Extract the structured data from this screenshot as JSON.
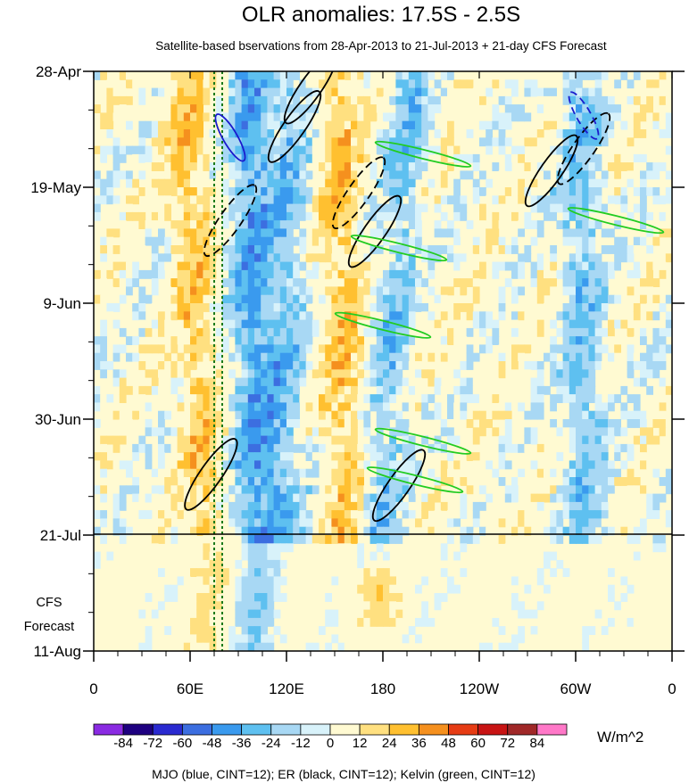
{
  "chart_data": {
    "type": "heatmap",
    "title": "OLR anomalies: 17.5S - 2.5S",
    "subtitle": "Satellite-based bservations from 28-Apr-2013 to 21-Jul-2013 + 21-day CFS Forecast",
    "x_ticks": [
      "0",
      "60E",
      "120E",
      "180",
      "120W",
      "60W",
      "0"
    ],
    "x_tick_values": [
      0,
      60,
      120,
      180,
      240,
      300,
      360
    ],
    "y_ticks": [
      "28-Apr",
      "19-May",
      "9-Jun",
      "30-Jun",
      "21-Jul",
      "11-Aug"
    ],
    "y_tick_days": [
      0,
      21,
      42,
      63,
      84,
      105
    ],
    "xlim": [
      0,
      360
    ],
    "ylim_days": [
      0,
      105
    ],
    "observation_end_label": "21-Jul",
    "forecast_label": [
      "CFS",
      "Forecast"
    ],
    "colorbar": {
      "levels": [
        "-84",
        "-72",
        "-60",
        "-48",
        "-36",
        "-24",
        "-12",
        "0",
        "12",
        "24",
        "36",
        "48",
        "60",
        "72",
        "84"
      ],
      "colors": [
        "#8a2be2",
        "#1e0080",
        "#2a2ad0",
        "#3c6ee0",
        "#3a9aee",
        "#5ec0f0",
        "#a8d8f4",
        "#d8f2fa",
        "#fffad2",
        "#ffe080",
        "#ffc030",
        "#f5901e",
        "#e63c14",
        "#c81414",
        "#a02828",
        "#ff78c8"
      ],
      "units": "W/m^2"
    },
    "footer": "MJO (blue, CINT=12); ER (black, CINT=12); Kelvin (green, CINT=12)",
    "series": [
      {
        "name": "MJO",
        "color": "#1a1acc"
      },
      {
        "name": "ER",
        "color": "#000000"
      },
      {
        "name": "Kelvin",
        "color": "#22cc22"
      }
    ],
    "convective_bands": [
      {
        "lon_start": 95,
        "lon_end": 100,
        "day_start": 0,
        "day_end": 105,
        "value": -36
      },
      {
        "lon_start": 120,
        "lon_end": 115,
        "day_start": 0,
        "day_end": 84,
        "value": -24
      },
      {
        "lon_start": 195,
        "lon_end": 175,
        "day_start": 0,
        "day_end": 84,
        "value": -24
      },
      {
        "lon_start": 300,
        "lon_end": 305,
        "day_start": 0,
        "day_end": 84,
        "value": -24
      }
    ],
    "suppressed_bands": [
      {
        "lon_start": 55,
        "lon_end": 70,
        "day_start": 0,
        "day_end": 105,
        "value": 24
      },
      {
        "lon_start": 150,
        "lon_end": 155,
        "day_start": 0,
        "day_end": 84,
        "value": 24
      },
      {
        "lon_start": 170,
        "lon_end": 175,
        "day_start": 90,
        "day_end": 100,
        "value": 36
      }
    ],
    "er_contours": [
      {
        "lon": 135,
        "day": 3,
        "style": "solid"
      },
      {
        "lon": 125,
        "day": 10,
        "style": "solid"
      },
      {
        "lon": 85,
        "day": 27,
        "style": "dashed"
      },
      {
        "lon": 165,
        "day": 22,
        "style": "dashed"
      },
      {
        "lon": 175,
        "day": 29,
        "style": "solid"
      },
      {
        "lon": 305,
        "day": 14,
        "style": "dashed"
      },
      {
        "lon": 285,
        "day": 18,
        "style": "solid"
      },
      {
        "lon": 73,
        "day": 73,
        "style": "solid"
      },
      {
        "lon": 190,
        "day": 75,
        "style": "solid"
      }
    ],
    "kelvin_contours": [
      {
        "lon": 205,
        "day": 15
      },
      {
        "lon": 325,
        "day": 27
      },
      {
        "lon": 190,
        "day": 32
      },
      {
        "lon": 180,
        "day": 46
      },
      {
        "lon": 205,
        "day": 67
      },
      {
        "lon": 200,
        "day": 74
      }
    ],
    "mjo_contours": [
      {
        "lon": 85,
        "day": 12,
        "style": "solid"
      },
      {
        "lon": 305,
        "day": 8,
        "style": "dashed"
      }
    ],
    "vertical_markers_lon": [
      75,
      80
    ]
  }
}
